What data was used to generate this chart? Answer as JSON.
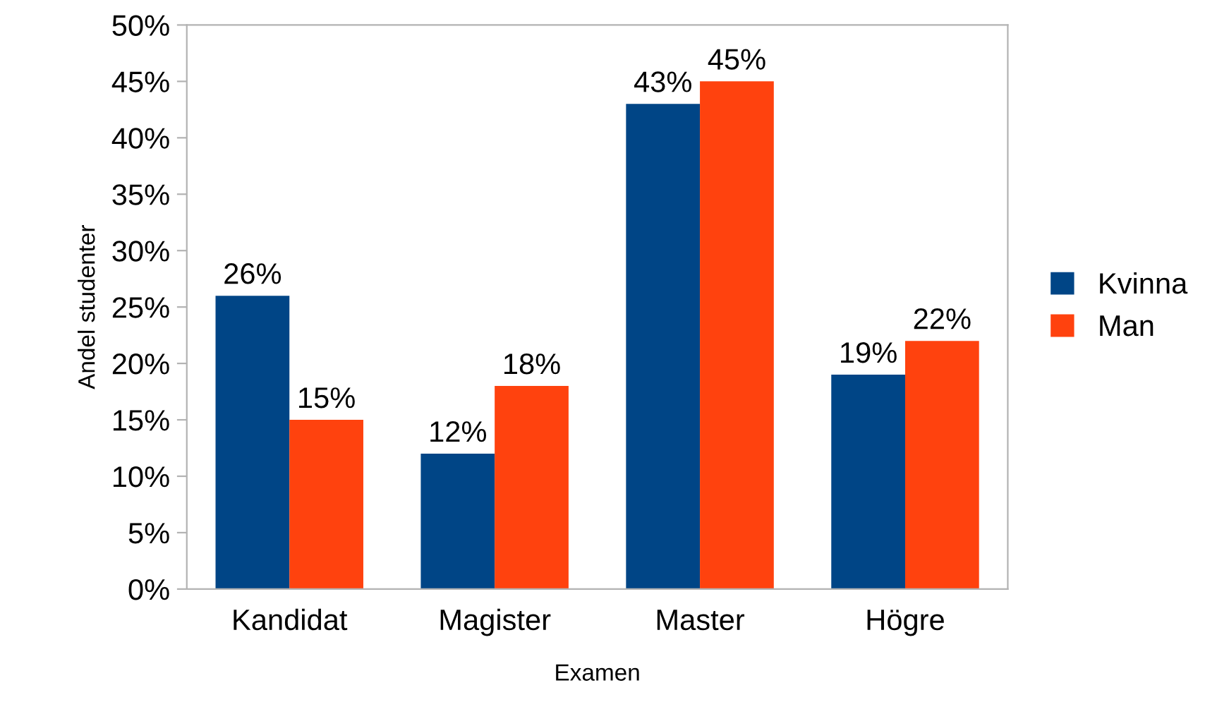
{
  "chart_data": {
    "type": "bar",
    "xlabel": "Examen",
    "ylabel": "Andel studenter",
    "categories": [
      "Kandidat",
      "Magister",
      "Master",
      "Högre"
    ],
    "series": [
      {
        "name": "Kvinna",
        "color": "#004586",
        "values": [
          26,
          12,
          43,
          19
        ],
        "value_labels": [
          "26%",
          "12%",
          "43%",
          "19%"
        ]
      },
      {
        "name": "Man",
        "color": "#ff420e",
        "values": [
          15,
          18,
          45,
          22
        ],
        "value_labels": [
          "15%",
          "18%",
          "45%",
          "22%"
        ]
      }
    ],
    "ylim": [
      0,
      50
    ],
    "yticks": [
      {
        "value": 0,
        "label": "0%"
      },
      {
        "value": 5,
        "label": "5%"
      },
      {
        "value": 10,
        "label": "10%"
      },
      {
        "value": 15,
        "label": "15%"
      },
      {
        "value": 20,
        "label": "20%"
      },
      {
        "value": 25,
        "label": "25%"
      },
      {
        "value": 30,
        "label": "30%"
      },
      {
        "value": 35,
        "label": "35%"
      },
      {
        "value": 40,
        "label": "40%"
      },
      {
        "value": 45,
        "label": "45%"
      },
      {
        "value": 50,
        "label": "50%"
      }
    ],
    "grid": false,
    "legend": "right"
  }
}
